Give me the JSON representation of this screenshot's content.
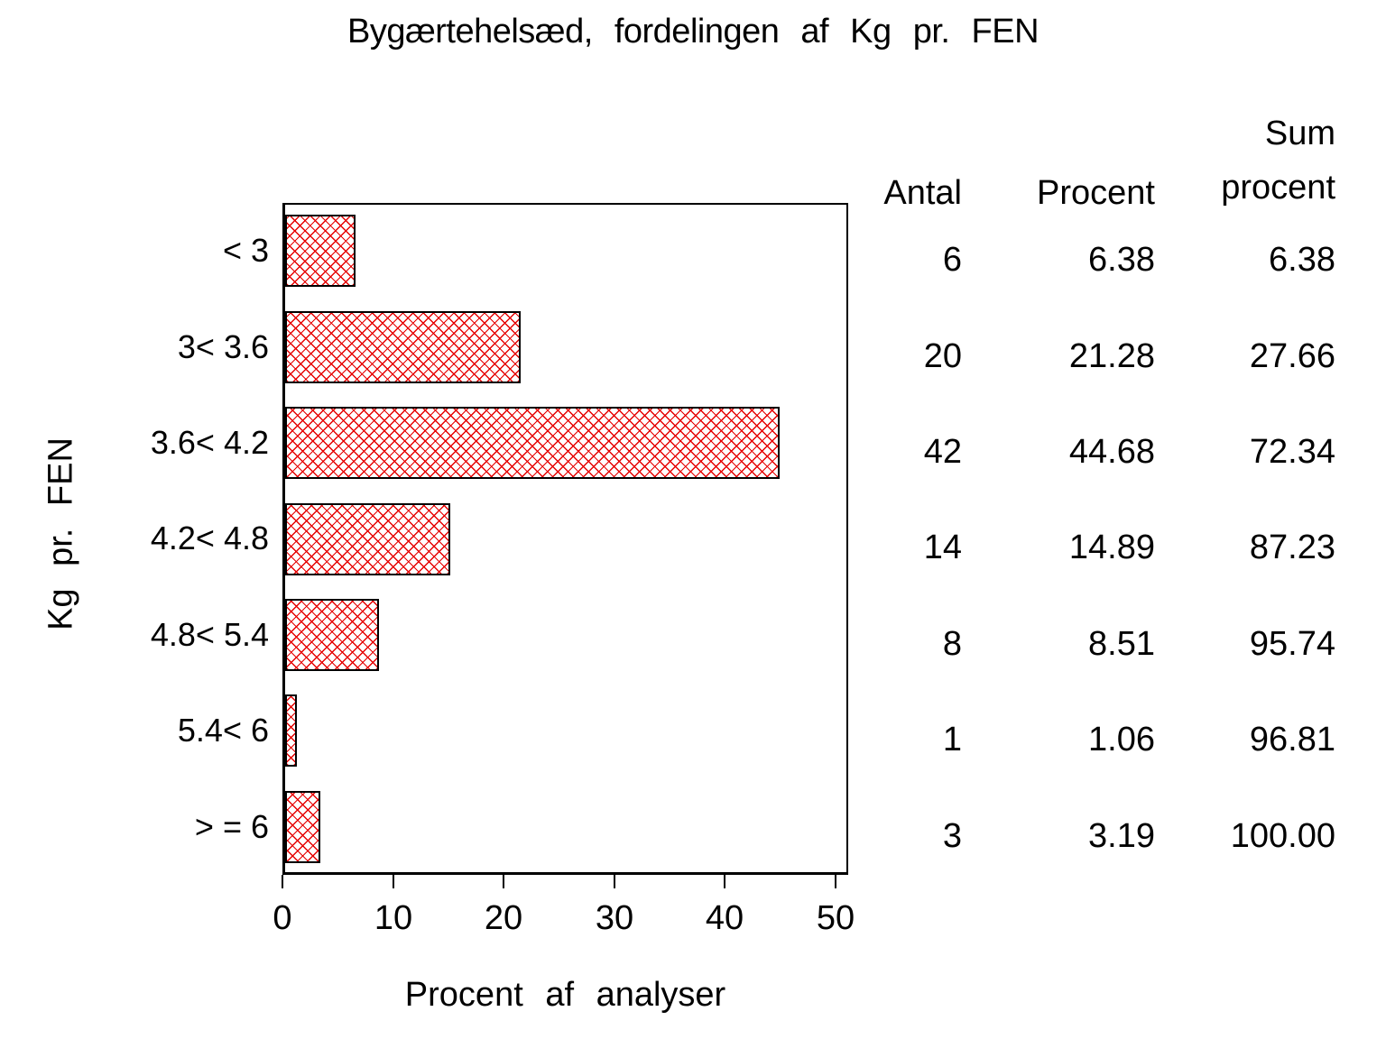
{
  "title": "Bygærtehelsæd, fordelingen af Kg pr. FEN",
  "chart_data": {
    "type": "bar",
    "orientation": "horizontal",
    "title": "Bygærtehelsæd, fordelingen af Kg pr. FEN",
    "categories": [
      "< 3",
      "3< 3.6",
      "3.6< 4.2",
      "4.2< 4.8",
      "4.8< 5.4",
      "5.4< 6",
      "> = 6"
    ],
    "values": [
      6.38,
      21.28,
      44.68,
      14.89,
      8.51,
      1.06,
      3.19
    ],
    "xlabel": "Procent af analyser",
    "ylabel": "Kg pr. FEN",
    "xlim": [
      0,
      50
    ],
    "xticks": [
      0,
      10,
      20,
      30,
      40,
      50
    ],
    "grid": "off",
    "bar_pattern": "diagonal-crosshatch",
    "bar_pattern_color": "#e60000",
    "bar_border_color": "#000000",
    "frame_color": "#000000",
    "background_color": "#ffffff"
  },
  "table": {
    "headers": {
      "antal": "Antal",
      "procent": "Procent",
      "sum_line1": "Sum",
      "sum_line2": "procent"
    },
    "rows": [
      {
        "antal": "6",
        "procent": "6.38",
        "sum": "6.38"
      },
      {
        "antal": "20",
        "procent": "21.28",
        "sum": "27.66"
      },
      {
        "antal": "42",
        "procent": "44.68",
        "sum": "72.34"
      },
      {
        "antal": "14",
        "procent": "14.89",
        "sum": "87.23"
      },
      {
        "antal": "8",
        "procent": "8.51",
        "sum": "95.74"
      },
      {
        "antal": "1",
        "procent": "1.06",
        "sum": "96.81"
      },
      {
        "antal": "3",
        "procent": "3.19",
        "sum": "100.00"
      }
    ]
  }
}
